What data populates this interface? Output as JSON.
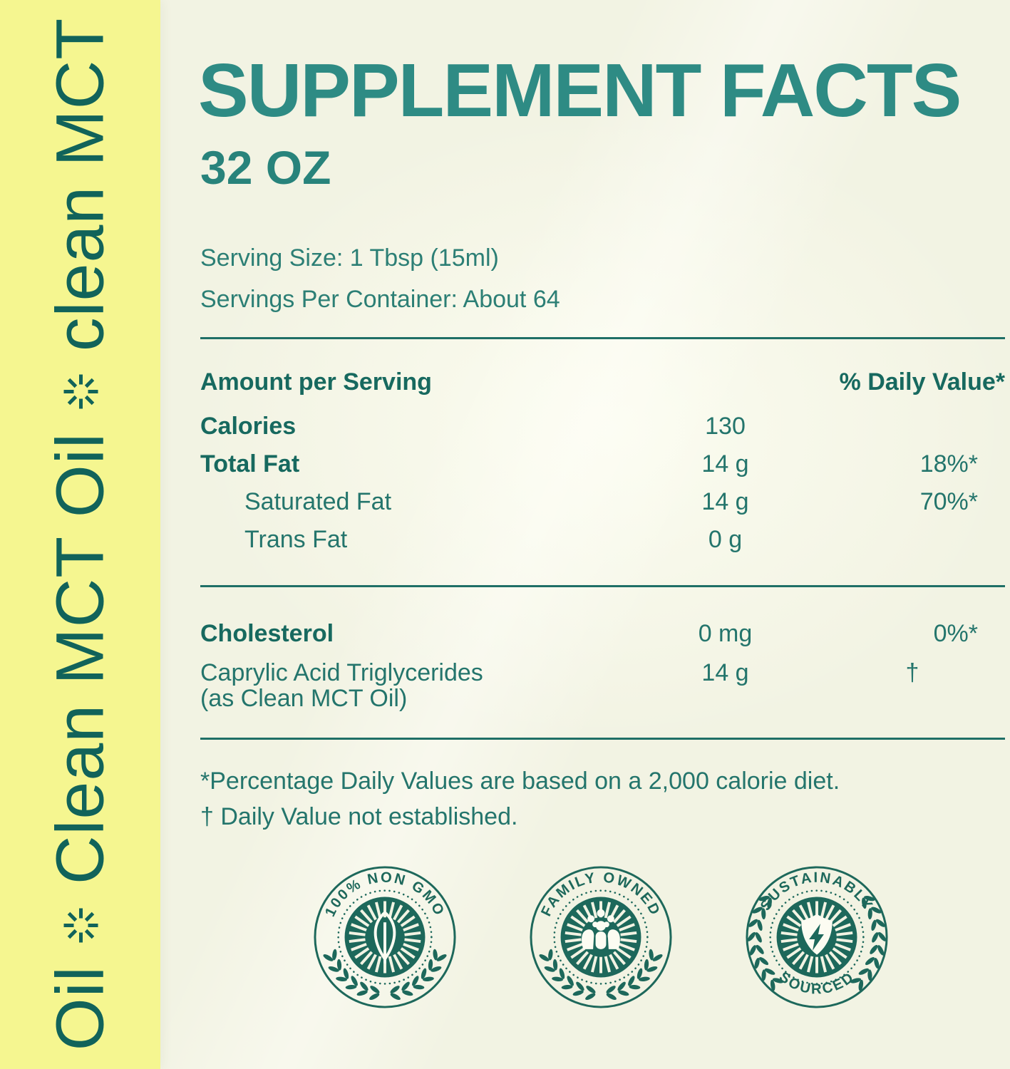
{
  "colors": {
    "cream_background": "#f2f3e3",
    "strip_yellow": "#f5f690",
    "teal_dark": "#11635a",
    "teal_title": "#2e8b84",
    "teal_mid": "#28837b",
    "teal_serving": "#2c7f75",
    "teal_text": "#17695f",
    "teal_soft": "#24756c",
    "teal_rule": "#1f6f66",
    "badge_teal": "#1d685b",
    "icon_paper": "#fcfcf2"
  },
  "strip": {
    "icon": "sun-asterisk",
    "segments": [
      "Oil",
      "Clean MCT Oil",
      "clean MCT"
    ]
  },
  "header": {
    "title": "SUPPLEMENT FACTS",
    "net_quantity": "32 OZ",
    "serving_size": "Serving Size: 1 Tbsp (15ml)",
    "servings_per_container": "Servings Per Container: About 64"
  },
  "facts": {
    "amount_header": "Amount per Serving",
    "dv_header": "% Daily Value*",
    "section1": [
      {
        "label": "Calories",
        "amount": "130",
        "dv": ""
      },
      {
        "label": "Total Fat",
        "amount": "14 g",
        "dv": "18%*"
      },
      {
        "label": "Saturated Fat",
        "amount": "14 g",
        "dv": "70%*"
      },
      {
        "label": "Trans Fat",
        "amount": "0 g",
        "dv": ""
      }
    ],
    "section2": [
      {
        "label": "Cholesterol",
        "amount": "0 mg",
        "dv": "0%*"
      },
      {
        "label": "Caprylic Acid Triglycerides",
        "label_note": "(as Clean MCT Oil)",
        "amount": "14 g",
        "dv": "†"
      }
    ],
    "footnotes": [
      "*Percentage Daily Values are based on a 2,000 calorie diet.",
      "† Daily Value not established."
    ]
  },
  "badges": [
    {
      "text_top": "100% NON GMO",
      "icon": "leaf-icon",
      "laurel": "bottom"
    },
    {
      "text_top": "FAMILY OWNED",
      "icon": "family-icon",
      "laurel": "bottom"
    },
    {
      "text_top": "SUSTAINABLY",
      "text_bottom": "SOURCED",
      "icon": "energy-shield-icon",
      "laurel": "sides"
    }
  ]
}
